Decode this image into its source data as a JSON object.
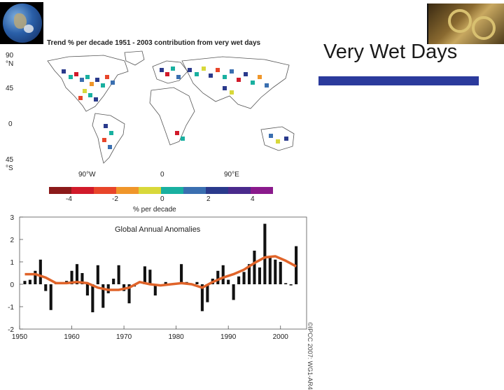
{
  "slide": {
    "title": "Very Wet Days",
    "accent_color": "#2b3a9c"
  },
  "map": {
    "title": "Trend % per decade 1951 - 2003 contribution from very wet days",
    "lat_labels": [
      "90",
      "°N",
      "45",
      "0",
      "45",
      "°S"
    ],
    "lon_labels": [
      "90°W",
      "0",
      "90°E"
    ],
    "colorbar": {
      "colors": [
        "#8b1a1a",
        "#d11a2a",
        "#e8452a",
        "#f0962a",
        "#d8d83a",
        "#19b0a0",
        "#3a6fb0",
        "#2a3a8c",
        "#4a2a8c",
        "#8a1a8c"
      ],
      "tick_labels": [
        "-4",
        "-2",
        "0",
        "2",
        "4"
      ],
      "label": "% per decade"
    }
  },
  "chart_data": {
    "type": "bar",
    "title": "Global Annual Anomalies",
    "xlabel": "",
    "ylabel": "",
    "xlim": [
      1950,
      2005
    ],
    "ylim": [
      -2,
      3
    ],
    "xticks": [
      1950,
      1960,
      1970,
      1980,
      1990,
      2000
    ],
    "yticks": [
      -2,
      -1,
      0,
      1,
      2,
      3
    ],
    "bar_color": "#111111",
    "smooth_color": "#e0642a",
    "watermark": "©IPCC 2007: WG1-AR4",
    "series": [
      {
        "name": "annual anomaly",
        "x": [
          1951,
          1952,
          1953,
          1954,
          1955,
          1956,
          1957,
          1959,
          1960,
          1961,
          1962,
          1963,
          1964,
          1965,
          1966,
          1967,
          1968,
          1969,
          1970,
          1971,
          1972,
          1974,
          1975,
          1976,
          1978,
          1981,
          1982,
          1984,
          1985,
          1986,
          1987,
          1988,
          1989,
          1990,
          1991,
          1992,
          1993,
          1994,
          1995,
          1996,
          1997,
          1998,
          1999,
          2000,
          2001,
          2002,
          2003
        ],
        "values": [
          0.15,
          0.2,
          0.6,
          1.1,
          -0.3,
          -1.15,
          0.1,
          0.15,
          0.6,
          0.9,
          0.5,
          -0.5,
          -1.25,
          0.85,
          -1.05,
          -0.4,
          0.25,
          0.85,
          -0.3,
          -0.85,
          -0.1,
          0.8,
          0.65,
          -0.5,
          0.1,
          0.9,
          0.1,
          0.1,
          -1.2,
          -0.8,
          0.25,
          0.6,
          0.85,
          0.2,
          -0.7,
          0.35,
          0.55,
          0.9,
          1.5,
          0.75,
          2.7,
          1.25,
          1.1,
          1.0,
          0.05,
          -0.05,
          1.7
        ]
      },
      {
        "name": "smoothed",
        "x": [
          1951,
          1953,
          1955,
          1957,
          1959,
          1961,
          1963,
          1965,
          1967,
          1969,
          1971,
          1973,
          1975,
          1977,
          1979,
          1981,
          1983,
          1985,
          1987,
          1989,
          1991,
          1993,
          1995,
          1997,
          1999,
          2001,
          2003
        ],
        "values": [
          0.45,
          0.45,
          0.3,
          0.05,
          0.05,
          0.1,
          0.05,
          -0.15,
          -0.25,
          -0.25,
          -0.15,
          0.1,
          0.0,
          -0.05,
          0.0,
          0.05,
          0.0,
          -0.15,
          0.1,
          0.3,
          0.45,
          0.65,
          0.95,
          1.2,
          1.25,
          1.05,
          0.8
        ]
      }
    ]
  }
}
